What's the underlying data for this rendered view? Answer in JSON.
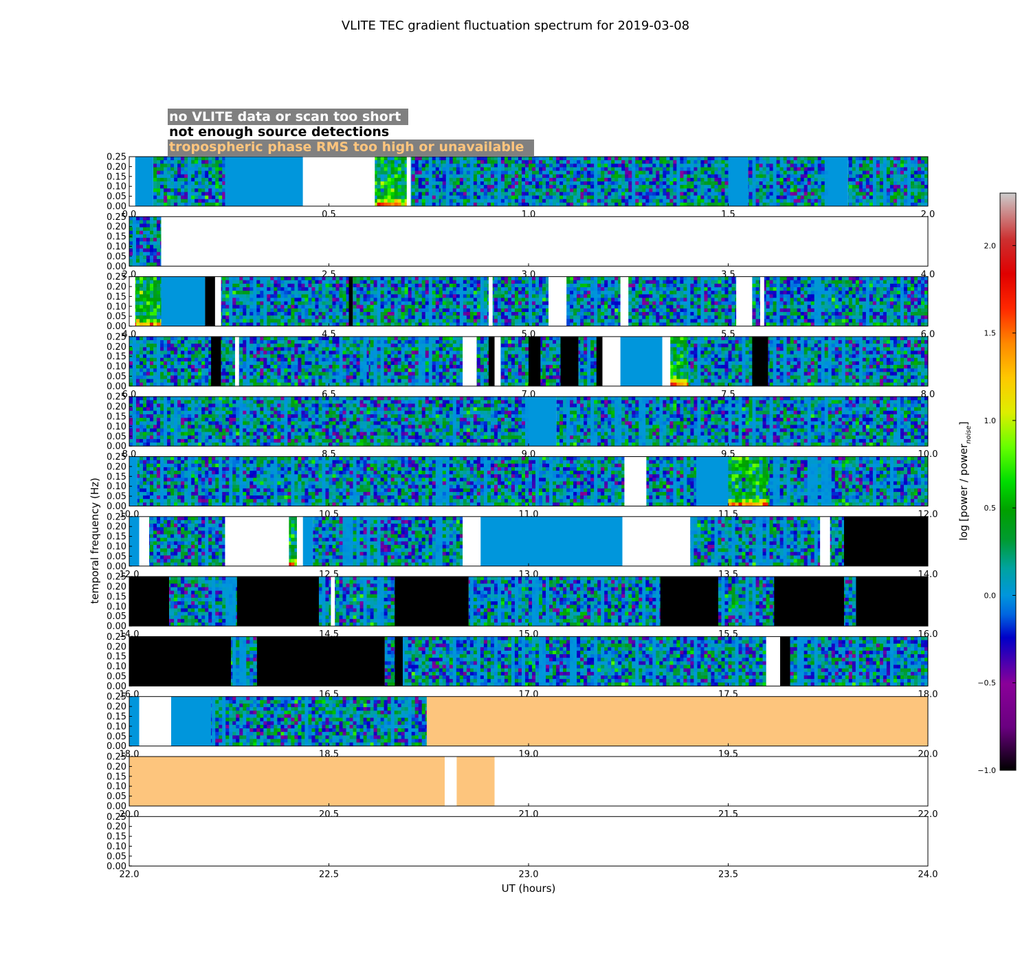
{
  "chart_data": {
    "type": "heatmap",
    "title": "VLITE TEC gradient fluctuation spectrum for 2019-03-08",
    "xlabel": "UT (hours)",
    "ylabel": "temporal frequency (Hz)",
    "colorbar_label": "log [power / power",
    "colorbar_label_subscript": "noise",
    "colorbar_label_close": "]",
    "colorbar_range": [
      -1.0,
      2.3
    ],
    "colorbar_ticks": [
      "−1.0",
      "−0.5",
      "0.0",
      "0.5",
      "1.0",
      "1.5",
      "2.0"
    ],
    "colorbar_tick_values": [
      -1.0,
      -0.5,
      0.0,
      0.5,
      1.0,
      1.5,
      2.0
    ],
    "ylim": [
      0,
      0.25
    ],
    "y_ticks": [
      "0.00",
      "0.05",
      "0.10",
      "0.15",
      "0.20",
      "0.25"
    ],
    "legend": [
      {
        "label": "no VLITE data or scan too short",
        "text_color": "#ffffff",
        "box_color": "#808080"
      },
      {
        "label": "not enough source detections",
        "text_color": "#000000",
        "box_color": "#808080"
      },
      {
        "label": "tropospheric phase RMS too high or unavailable",
        "text_color": "#ffc57d",
        "box_color": "#808080"
      }
    ],
    "colors": {
      "no_data": "#ffffff",
      "few_detections": "#000000",
      "trop_rms_high": "#fdc57d",
      "base_value": "#0096dc"
    },
    "panels": [
      {
        "xlim": [
          0.0,
          2.0
        ],
        "x_ticks": [
          "0.0",
          "0.5",
          "1.0",
          "1.5",
          "2.0"
        ],
        "segments": [
          {
            "t0": 0.0,
            "t1": 0.015,
            "state": "none"
          },
          {
            "t0": 0.015,
            "t1": 0.06,
            "state": "flat"
          },
          {
            "t0": 0.06,
            "t1": 0.24,
            "state": "data"
          },
          {
            "t0": 0.24,
            "t1": 0.435,
            "state": "flat"
          },
          {
            "t0": 0.435,
            "t1": 0.615,
            "state": "none"
          },
          {
            "t0": 0.615,
            "t1": 0.695,
            "state": "active"
          },
          {
            "t0": 0.695,
            "t1": 0.705,
            "state": "none"
          },
          {
            "t0": 0.705,
            "t1": 0.78,
            "state": "data"
          },
          {
            "t0": 0.78,
            "t1": 1.13,
            "state": "data"
          },
          {
            "t0": 1.13,
            "t1": 1.5,
            "state": "data"
          },
          {
            "t0": 1.5,
            "t1": 1.55,
            "state": "flat"
          },
          {
            "t0": 1.55,
            "t1": 1.75,
            "state": "data"
          },
          {
            "t0": 1.75,
            "t1": 1.8,
            "state": "flat"
          },
          {
            "t0": 1.8,
            "t1": 2.0,
            "state": "data"
          }
        ]
      },
      {
        "xlim": [
          2.0,
          4.0
        ],
        "x_ticks": [
          "2.0",
          "2.5",
          "3.0",
          "3.5",
          "4.0"
        ],
        "segments": [
          {
            "t0": 2.0,
            "t1": 2.08,
            "state": "data"
          },
          {
            "t0": 2.08,
            "t1": 4.0,
            "state": "none"
          }
        ]
      },
      {
        "xlim": [
          4.0,
          6.0
        ],
        "x_ticks": [
          "4.0",
          "4.5",
          "5.0",
          "5.5",
          "6.0"
        ],
        "segments": [
          {
            "t0": 4.0,
            "t1": 4.015,
            "state": "none"
          },
          {
            "t0": 4.015,
            "t1": 4.08,
            "state": "active"
          },
          {
            "t0": 4.08,
            "t1": 4.19,
            "state": "flat"
          },
          {
            "t0": 4.19,
            "t1": 4.215,
            "state": "few"
          },
          {
            "t0": 4.215,
            "t1": 4.23,
            "state": "none"
          },
          {
            "t0": 4.23,
            "t1": 4.55,
            "state": "data"
          },
          {
            "t0": 4.55,
            "t1": 4.56,
            "state": "few"
          },
          {
            "t0": 4.56,
            "t1": 4.9,
            "state": "data"
          },
          {
            "t0": 4.9,
            "t1": 4.91,
            "state": "none"
          },
          {
            "t0": 4.91,
            "t1": 5.05,
            "state": "data"
          },
          {
            "t0": 5.05,
            "t1": 5.095,
            "state": "none"
          },
          {
            "t0": 5.095,
            "t1": 5.23,
            "state": "data"
          },
          {
            "t0": 5.23,
            "t1": 5.25,
            "state": "none"
          },
          {
            "t0": 5.25,
            "t1": 5.52,
            "state": "data"
          },
          {
            "t0": 5.52,
            "t1": 5.56,
            "state": "none"
          },
          {
            "t0": 5.56,
            "t1": 5.58,
            "state": "data"
          },
          {
            "t0": 5.58,
            "t1": 5.59,
            "state": "none"
          },
          {
            "t0": 5.59,
            "t1": 6.0,
            "state": "data"
          }
        ]
      },
      {
        "xlim": [
          6.0,
          8.0
        ],
        "x_ticks": [
          "6.0",
          "6.5",
          "7.0",
          "7.5",
          "8.0"
        ],
        "segments": [
          {
            "t0": 6.0,
            "t1": 6.205,
            "state": "data"
          },
          {
            "t0": 6.205,
            "t1": 6.23,
            "state": "few"
          },
          {
            "t0": 6.23,
            "t1": 6.265,
            "state": "data"
          },
          {
            "t0": 6.265,
            "t1": 6.275,
            "state": "none"
          },
          {
            "t0": 6.275,
            "t1": 6.6,
            "state": "data"
          },
          {
            "t0": 6.6,
            "t1": 6.835,
            "state": "data"
          },
          {
            "t0": 6.835,
            "t1": 6.87,
            "state": "none"
          },
          {
            "t0": 6.87,
            "t1": 6.9,
            "state": "data"
          },
          {
            "t0": 6.9,
            "t1": 6.915,
            "state": "few"
          },
          {
            "t0": 6.915,
            "t1": 6.93,
            "state": "none"
          },
          {
            "t0": 6.93,
            "t1": 7.0,
            "state": "data"
          },
          {
            "t0": 7.0,
            "t1": 7.03,
            "state": "few"
          },
          {
            "t0": 7.03,
            "t1": 7.08,
            "state": "data"
          },
          {
            "t0": 7.08,
            "t1": 7.125,
            "state": "few"
          },
          {
            "t0": 7.125,
            "t1": 7.17,
            "state": "data"
          },
          {
            "t0": 7.17,
            "t1": 7.185,
            "state": "few"
          },
          {
            "t0": 7.185,
            "t1": 7.23,
            "state": "none"
          },
          {
            "t0": 7.23,
            "t1": 7.335,
            "state": "flat"
          },
          {
            "t0": 7.335,
            "t1": 7.355,
            "state": "none"
          },
          {
            "t0": 7.355,
            "t1": 7.4,
            "state": "active"
          },
          {
            "t0": 7.4,
            "t1": 7.56,
            "state": "data"
          },
          {
            "t0": 7.56,
            "t1": 7.6,
            "state": "few"
          },
          {
            "t0": 7.6,
            "t1": 8.0,
            "state": "data"
          }
        ]
      },
      {
        "xlim": [
          8.0,
          10.0
        ],
        "x_ticks": [
          "8.0",
          "8.5",
          "9.0",
          "9.5",
          "10.0"
        ],
        "segments": [
          {
            "t0": 8.0,
            "t1": 9.0,
            "state": "data"
          },
          {
            "t0": 9.0,
            "t1": 9.07,
            "state": "flat"
          },
          {
            "t0": 9.07,
            "t1": 10.0,
            "state": "data"
          }
        ]
      },
      {
        "xlim": [
          10.0,
          12.0
        ],
        "x_ticks": [
          "10.0",
          "10.5",
          "11.0",
          "11.5",
          "12.0"
        ],
        "segments": [
          {
            "t0": 10.0,
            "t1": 10.02,
            "state": "flat"
          },
          {
            "t0": 10.02,
            "t1": 11.24,
            "state": "data"
          },
          {
            "t0": 11.24,
            "t1": 11.295,
            "state": "none"
          },
          {
            "t0": 11.295,
            "t1": 11.42,
            "state": "data"
          },
          {
            "t0": 11.42,
            "t1": 11.5,
            "state": "flat"
          },
          {
            "t0": 11.5,
            "t1": 11.6,
            "state": "active"
          },
          {
            "t0": 11.6,
            "t1": 12.0,
            "state": "data"
          }
        ]
      },
      {
        "xlim": [
          12.0,
          14.0
        ],
        "x_ticks": [
          "12.0",
          "12.5",
          "13.0",
          "13.5",
          "14.0"
        ],
        "segments": [
          {
            "t0": 12.0,
            "t1": 12.025,
            "state": "flat"
          },
          {
            "t0": 12.025,
            "t1": 12.05,
            "state": "none"
          },
          {
            "t0": 12.05,
            "t1": 12.24,
            "state": "data"
          },
          {
            "t0": 12.24,
            "t1": 12.4,
            "state": "none"
          },
          {
            "t0": 12.4,
            "t1": 12.42,
            "state": "active"
          },
          {
            "t0": 12.42,
            "t1": 12.435,
            "state": "none"
          },
          {
            "t0": 12.435,
            "t1": 12.46,
            "state": "flat"
          },
          {
            "t0": 12.46,
            "t1": 12.835,
            "state": "data"
          },
          {
            "t0": 12.835,
            "t1": 12.88,
            "state": "none"
          },
          {
            "t0": 12.88,
            "t1": 13.235,
            "state": "flat"
          },
          {
            "t0": 13.235,
            "t1": 13.405,
            "state": "none"
          },
          {
            "t0": 13.405,
            "t1": 13.73,
            "state": "data"
          },
          {
            "t0": 13.73,
            "t1": 13.755,
            "state": "none"
          },
          {
            "t0": 13.755,
            "t1": 13.79,
            "state": "data"
          },
          {
            "t0": 13.79,
            "t1": 14.0,
            "state": "few"
          }
        ]
      },
      {
        "xlim": [
          14.0,
          16.0
        ],
        "x_ticks": [
          "14.0",
          "14.5",
          "15.0",
          "15.5",
          "16.0"
        ],
        "segments": [
          {
            "t0": 14.0,
            "t1": 14.1,
            "state": "few"
          },
          {
            "t0": 14.1,
            "t1": 14.27,
            "state": "data"
          },
          {
            "t0": 14.27,
            "t1": 14.475,
            "state": "few"
          },
          {
            "t0": 14.475,
            "t1": 14.505,
            "state": "data"
          },
          {
            "t0": 14.505,
            "t1": 14.515,
            "state": "none"
          },
          {
            "t0": 14.515,
            "t1": 14.665,
            "state": "data"
          },
          {
            "t0": 14.665,
            "t1": 14.85,
            "state": "few"
          },
          {
            "t0": 14.85,
            "t1": 15.33,
            "state": "data"
          },
          {
            "t0": 15.33,
            "t1": 15.475,
            "state": "few"
          },
          {
            "t0": 15.475,
            "t1": 15.615,
            "state": "data"
          },
          {
            "t0": 15.615,
            "t1": 15.79,
            "state": "few"
          },
          {
            "t0": 15.79,
            "t1": 15.82,
            "state": "data"
          },
          {
            "t0": 15.82,
            "t1": 16.0,
            "state": "few"
          }
        ]
      },
      {
        "xlim": [
          16.0,
          18.0
        ],
        "x_ticks": [
          "16.0",
          "16.5",
          "17.0",
          "17.5",
          "18.0"
        ],
        "segments": [
          {
            "t0": 16.0,
            "t1": 16.255,
            "state": "few"
          },
          {
            "t0": 16.255,
            "t1": 16.32,
            "state": "data"
          },
          {
            "t0": 16.32,
            "t1": 16.64,
            "state": "few"
          },
          {
            "t0": 16.64,
            "t1": 16.665,
            "state": "data"
          },
          {
            "t0": 16.665,
            "t1": 16.685,
            "state": "few"
          },
          {
            "t0": 16.685,
            "t1": 17.595,
            "state": "data"
          },
          {
            "t0": 17.595,
            "t1": 17.63,
            "state": "none"
          },
          {
            "t0": 17.63,
            "t1": 17.655,
            "state": "few"
          },
          {
            "t0": 17.655,
            "t1": 18.0,
            "state": "data"
          }
        ]
      },
      {
        "xlim": [
          18.0,
          20.0
        ],
        "x_ticks": [
          "18.0",
          "18.5",
          "19.0",
          "19.5",
          "20.0"
        ],
        "segments": [
          {
            "t0": 18.0,
            "t1": 18.025,
            "state": "flat"
          },
          {
            "t0": 18.025,
            "t1": 18.105,
            "state": "none"
          },
          {
            "t0": 18.105,
            "t1": 18.205,
            "state": "flat"
          },
          {
            "t0": 18.205,
            "t1": 18.745,
            "state": "data"
          },
          {
            "t0": 18.745,
            "t1": 20.0,
            "state": "trop"
          }
        ]
      },
      {
        "xlim": [
          20.0,
          22.0
        ],
        "x_ticks": [
          "20.0",
          "20.5",
          "21.0",
          "21.5",
          "22.0"
        ],
        "segments": [
          {
            "t0": 20.0,
            "t1": 20.79,
            "state": "trop"
          },
          {
            "t0": 20.79,
            "t1": 20.82,
            "state": "none"
          },
          {
            "t0": 20.82,
            "t1": 20.915,
            "state": "trop"
          },
          {
            "t0": 20.915,
            "t1": 22.0,
            "state": "none"
          }
        ]
      },
      {
        "xlim": [
          22.0,
          24.0
        ],
        "x_ticks": [
          "22.0",
          "22.5",
          "23.0",
          "23.5",
          "24.0"
        ],
        "segments": [
          {
            "t0": 22.0,
            "t1": 24.0,
            "state": "none"
          }
        ]
      }
    ]
  }
}
